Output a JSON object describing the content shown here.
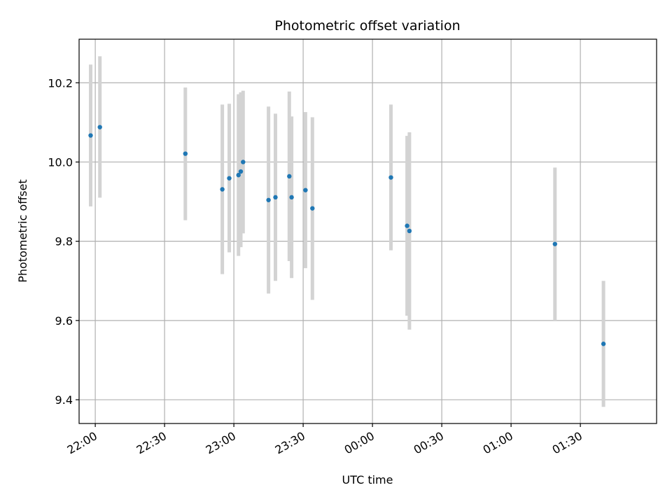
{
  "chart_data": {
    "type": "scatter",
    "title": "Photometric offset variation",
    "xlabel": "UTC time",
    "ylabel": "Photometric offset",
    "x_axis": {
      "kind": "time",
      "range": [
        "21:53",
        "02:03"
      ],
      "ticks": [
        "22:00",
        "22:30",
        "23:00",
        "23:30",
        "00:00",
        "00:30",
        "01:00",
        "01:30"
      ]
    },
    "y_axis": {
      "range": [
        9.34,
        10.31
      ],
      "ticks": [
        9.4,
        9.6,
        9.8,
        10.0,
        10.2
      ]
    },
    "grid": true,
    "colors": {
      "point": "#1f77b4",
      "errorbar": "#d3d3d3",
      "grid": "#b0b0b0"
    },
    "points": [
      {
        "time": "21:58",
        "y": 10.067,
        "lo": 9.888,
        "hi": 10.246
      },
      {
        "time": "22:02",
        "y": 10.088,
        "lo": 9.91,
        "hi": 10.267
      },
      {
        "time": "22:39",
        "y": 10.021,
        "lo": 9.853,
        "hi": 10.188
      },
      {
        "time": "22:55",
        "y": 9.931,
        "lo": 9.717,
        "hi": 10.145
      },
      {
        "time": "22:58",
        "y": 9.959,
        "lo": 9.772,
        "hi": 10.147
      },
      {
        "time": "23:02",
        "y": 9.967,
        "lo": 9.763,
        "hi": 10.171
      },
      {
        "time": "23:03",
        "y": 9.976,
        "lo": 9.785,
        "hi": 10.176
      },
      {
        "time": "23:04",
        "y": 10.0,
        "lo": 9.82,
        "hi": 10.18
      },
      {
        "time": "23:15",
        "y": 9.904,
        "lo": 9.668,
        "hi": 10.14
      },
      {
        "time": "23:18",
        "y": 9.911,
        "lo": 9.7,
        "hi": 10.122
      },
      {
        "time": "23:24",
        "y": 9.964,
        "lo": 9.75,
        "hi": 10.178
      },
      {
        "time": "23:25",
        "y": 9.911,
        "lo": 9.707,
        "hi": 10.115
      },
      {
        "time": "23:31",
        "y": 9.929,
        "lo": 9.732,
        "hi": 10.126
      },
      {
        "time": "23:34",
        "y": 9.883,
        "lo": 9.652,
        "hi": 10.113
      },
      {
        "time": "00:08",
        "y": 9.961,
        "lo": 9.777,
        "hi": 10.145
      },
      {
        "time": "00:15",
        "y": 9.839,
        "lo": 9.612,
        "hi": 10.066
      },
      {
        "time": "00:16",
        "y": 9.826,
        "lo": 9.577,
        "hi": 10.075
      },
      {
        "time": "01:19",
        "y": 9.793,
        "lo": 9.6,
        "hi": 9.986
      },
      {
        "time": "01:40",
        "y": 9.541,
        "lo": 9.382,
        "hi": 9.7
      }
    ]
  }
}
